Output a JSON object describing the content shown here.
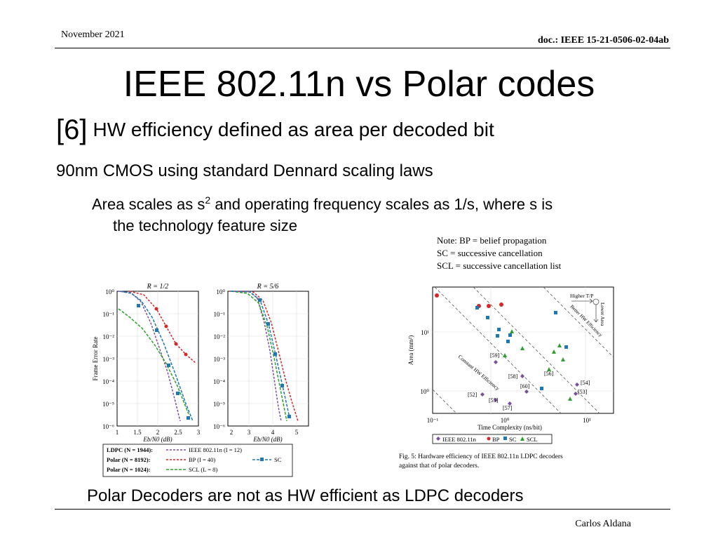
{
  "header": {
    "date": "November 2021",
    "doc": "doc.: IEEE 15-21-0506-02-04ab"
  },
  "title": "IEEE 802.11n vs Polar codes",
  "subtitle": {
    "ref": "[6]",
    "text": "HW efficiency defined as area per decoded bit"
  },
  "bullet1": "90nm CMOS using standard Dennard scaling laws",
  "bullet2": {
    "pre": "Area scales as s",
    "sup": "2",
    "post": " and operating frequency scales as 1/s, where s is",
    "cont": "the technology feature size"
  },
  "note": {
    "line1": "Note: BP = belief propagation",
    "line2": "SC = successive cancellation",
    "line3": "SCL = successive cancellation list"
  },
  "fer_plot": {
    "left_title": "R = 1/2",
    "right_title": "R = 5/6",
    "ylabel": "Frame Error Rate",
    "xlabel": "Eb/N0 (dB)",
    "y_ticks": [
      "10⁰",
      "10⁻¹",
      "10⁻²",
      "10⁻³",
      "10⁻⁴",
      "10⁻⁵",
      "10⁻⁶"
    ],
    "left_x_ticks": [
      "1",
      "1.5",
      "2",
      "2.5",
      "3"
    ],
    "right_x_ticks": [
      "2",
      "3",
      "4",
      "5"
    ],
    "legend": {
      "row1": "LDPC (N = 1944):",
      "row1b": "IEEE 802.11n (I = 12)",
      "row2": "Polar (N = 8192):",
      "row2b": "BP (I = 40)",
      "row3": "Polar (N = 1024):",
      "row3b": "SCL (L = 8)",
      "sc": "SC"
    },
    "colors": {
      "ieee": "#7b4fa0",
      "bp": "#d62728",
      "scl": "#2ca02c",
      "sc": "#1f77b4"
    }
  },
  "hw_plot": {
    "ylabel": "Area (mm²)",
    "xlabel": "Time Complexity (ns/bit)",
    "x_ticks": [
      "10⁻¹",
      "10⁰",
      "10¹"
    ],
    "y_ticks": [
      "10¹",
      "10⁰"
    ],
    "annotations": {
      "higher_tp": "Higher T/P",
      "lower_area": "Lower Area",
      "better_hw": "Better HW Efficiency",
      "constant": "Constant HW Efficiency"
    },
    "refs": [
      "[59]",
      "[58]",
      "[60]",
      "[52]",
      "[55]",
      "[57]",
      "[56]",
      "[54]",
      "[53]"
    ],
    "legend": {
      "ieee": "IEEE 802.11n",
      "bp": "BP",
      "sc": "SC",
      "scl": "SCL"
    },
    "caption_line1": "Fig. 5: Hardware efficiency of IEEE 802.11n LDPC decoders",
    "caption_line2": "against that of polar decoders."
  },
  "conclusion": "Polar Decoders are not as HW efficient as LDPC decoders",
  "footer": {
    "author": "Carlos Aldana"
  }
}
